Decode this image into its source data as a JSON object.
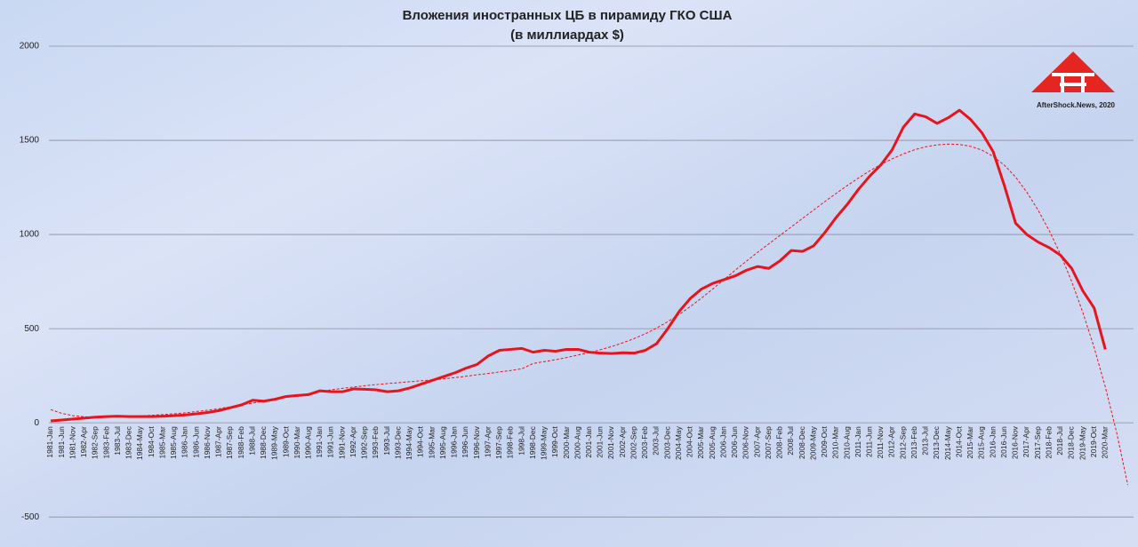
{
  "chart_data": {
    "type": "line",
    "title": "Вложения иностранных ЦБ в пирамиду ГКО США",
    "subtitle": "(в миллиардах $)",
    "annotation": "AfterShock.News, 2020",
    "ylim": [
      -650,
      2000
    ],
    "yticks": [
      -500,
      0,
      500,
      1000,
      1500,
      2000
    ],
    "grid": true,
    "categories": [
      "1981-Jan",
      "1981-Jun",
      "1981-Nov",
      "1982-Apr",
      "1982-Sep",
      "1983-Feb",
      "1983-Jul",
      "1983-Dec",
      "1984-May",
      "1984-Oct",
      "1985-Mar",
      "1985-Aug",
      "1986-Jan",
      "1986-Jun",
      "1986-Nov",
      "1987-Apr",
      "1987-Sep",
      "1988-Feb",
      "1988-Jul",
      "1988-Dec",
      "1989-May",
      "1989-Oct",
      "1990-Mar",
      "1990-Aug",
      "1991-Jan",
      "1991-Jun",
      "1991-Nov",
      "1992-Apr",
      "1992-Sep",
      "1993-Feb",
      "1993-Jul",
      "1993-Dec",
      "1994-May",
      "1994-Oct",
      "1995-Mar",
      "1995-Aug",
      "1996-Jan",
      "1996-Jun",
      "1996-Nov",
      "1997-Apr",
      "1997-Sep",
      "1998-Feb",
      "1998-Jul",
      "1998-Dec",
      "1999-May",
      "1999-Oct",
      "2000-Mar",
      "2000-Aug",
      "2001-Jan",
      "2001-Jun",
      "2001-Nov",
      "2002-Apr",
      "2002-Sep",
      "2003-Feb",
      "2003-Jul",
      "2003-Dec",
      "2004-May",
      "2004-Oct",
      "2005-Mar",
      "2005-Aug",
      "2006-Jan",
      "2006-Jun",
      "2006-Nov",
      "2007-Apr",
      "2007-Sep",
      "2008-Feb",
      "2008-Jul",
      "2008-Dec",
      "2009-May",
      "2009-Oct",
      "2010-Mar",
      "2010-Aug",
      "2011-Jan",
      "2011-Jun",
      "2011-Nov",
      "2012-Apr",
      "2012-Sep",
      "2013-Feb",
      "2013-Jul",
      "2013-Dec",
      "2014-May",
      "2014-Oct",
      "2015-Mar",
      "2015-Aug",
      "2016-Jan",
      "2016-Jun",
      "2016-Nov",
      "2017-Apr",
      "2017-Sep",
      "2018-Feb",
      "2018-Jul",
      "2018-Dec",
      "2019-May",
      "2019-Oct",
      "2020-Mar",
      null,
      null
    ],
    "series": [
      {
        "color": "#e8141c",
        "style": "solid",
        "values": [
          10,
          15,
          20,
          25,
          30,
          33,
          35,
          33,
          33,
          33,
          35,
          38,
          42,
          48,
          55,
          65,
          80,
          95,
          120,
          115,
          125,
          140,
          145,
          150,
          170,
          165,
          165,
          180,
          178,
          175,
          165,
          170,
          185,
          205,
          225,
          245,
          265,
          290,
          310,
          355,
          385,
          390,
          395,
          375,
          385,
          380,
          390,
          390,
          375,
          370,
          368,
          372,
          370,
          385,
          420,
          500,
          590,
          660,
          710,
          740,
          760,
          780,
          810,
          830,
          820,
          860,
          915,
          910,
          940,
          1010,
          1090,
          1160,
          1240,
          1310,
          1370,
          1450,
          1570,
          1640,
          1625,
          1590,
          1620,
          1660,
          1610,
          1540,
          1440,
          1260,
          1060,
          1000,
          960,
          930,
          890,
          820,
          700,
          610,
          390,
          null,
          null
        ]
      },
      {
        "color": "#e8141c",
        "style": "dashed",
        "values": [
          70,
          50,
          38,
          32,
          30,
          30,
          32,
          34,
          37,
          40,
          44,
          48,
          53,
          60,
          67,
          75,
          85,
          95,
          105,
          115,
          125,
          135,
          145,
          155,
          165,
          175,
          183,
          190,
          197,
          203,
          208,
          213,
          218,
          223,
          228,
          233,
          240,
          247,
          255,
          262,
          270,
          278,
          287,
          315,
          325,
          335,
          347,
          360,
          373,
          388,
          405,
          425,
          447,
          473,
          503,
          537,
          575,
          617,
          662,
          710,
          760,
          810,
          858,
          905,
          950,
          995,
          1040,
          1085,
          1130,
          1175,
          1218,
          1260,
          1300,
          1338,
          1372,
          1402,
          1428,
          1450,
          1466,
          1476,
          1480,
          1478,
          1468,
          1448,
          1415,
          1368,
          1305,
          1225,
          1130,
          1020,
          895,
          750,
          585,
          400,
          190,
          -50,
          -330
        ]
      }
    ]
  }
}
